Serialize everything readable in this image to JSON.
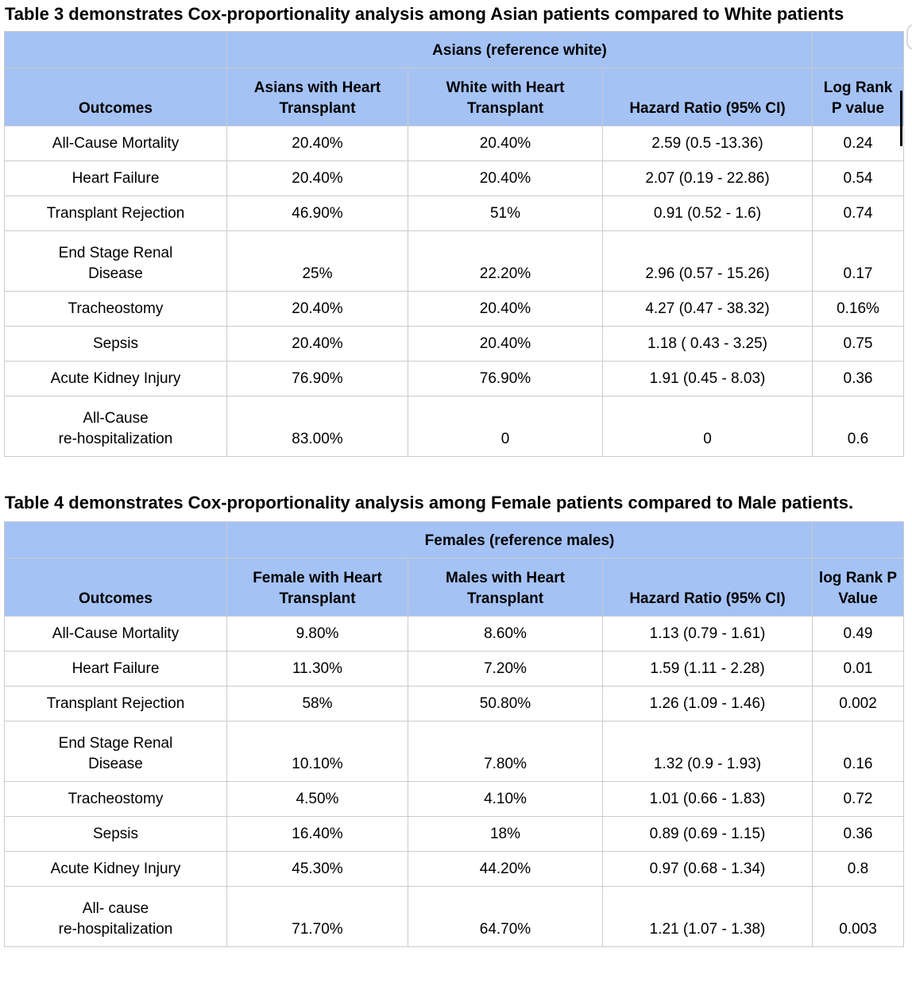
{
  "colors": {
    "header_bg": "#a4c2f4",
    "border": "#cbcbcb",
    "text": "#000000",
    "caret": "#000000"
  },
  "tables": [
    {
      "title": "Table 3 demonstrates Cox-proportionality analysis among Asian patients compared to White patients",
      "group_header": "Asians (reference white)",
      "col_headers": [
        "Outcomes",
        "Asians with Heart Transplant",
        "White with Heart Transplant",
        "Hazard Ratio (95% CI)",
        "Log Rank P value"
      ],
      "rows": [
        [
          "All-Cause Mortality",
          "20.40%",
          "20.40%",
          "2.59 (0.5 -13.36)",
          "0.24"
        ],
        [
          "Heart Failure",
          "20.40%",
          "20.40%",
          "2.07 (0.19 - 22.86)",
          "0.54"
        ],
        [
          "Transplant Rejection",
          "46.90%",
          "51%",
          "0.91 (0.52 - 1.6)",
          "0.74"
        ],
        [
          "End Stage Renal\nDisease",
          "25%",
          "22.20%",
          "2.96 (0.57 - 15.26)",
          "0.17"
        ],
        [
          "Tracheostomy",
          "20.40%",
          "20.40%",
          "4.27 (0.47 - 38.32)",
          "0.16%"
        ],
        [
          "Sepsis",
          "20.40%",
          "20.40%",
          "1.18 ( 0.43 - 3.25)",
          "0.75"
        ],
        [
          "Acute Kidney Injury",
          "76.90%",
          "76.90%",
          "1.91 (0.45 - 8.03)",
          "0.36"
        ],
        [
          "All-Cause\nre-hospitalization",
          "83.00%",
          "0",
          "0",
          "0.6"
        ]
      ]
    },
    {
      "title": "Table 4 demonstrates Cox-proportionality analysis among Female patients compared to Male patients.",
      "group_header": "Females (reference males)",
      "col_headers": [
        "Outcomes",
        "Female with Heart Transplant",
        "Males with Heart Transplant",
        "Hazard Ratio (95% CI)",
        "log Rank P Value"
      ],
      "rows": [
        [
          "All-Cause Mortality",
          "9.80%",
          "8.60%",
          "1.13 (0.79 - 1.61)",
          "0.49"
        ],
        [
          "Heart Failure",
          "11.30%",
          "7.20%",
          "1.59 (1.11 - 2.28)",
          "0.01"
        ],
        [
          "Transplant Rejection",
          "58%",
          "50.80%",
          "1.26 (1.09 - 1.46)",
          "0.002"
        ],
        [
          "End Stage Renal\nDisease",
          "10.10%",
          "7.80%",
          "1.32 (0.9 - 1.93)",
          "0.16"
        ],
        [
          "Tracheostomy",
          "4.50%",
          "4.10%",
          "1.01 (0.66 - 1.83)",
          "0.72"
        ],
        [
          "Sepsis",
          "16.40%",
          "18%",
          "0.89 (0.69 - 1.15)",
          "0.36"
        ],
        [
          "Acute Kidney Injury",
          "45.30%",
          "44.20%",
          "0.97 (0.68 - 1.34)",
          "0.8"
        ],
        [
          "All- cause\nre-hospitalization",
          "71.70%",
          "64.70%",
          "1.21 (1.07 - 1.38)",
          "0.003"
        ]
      ]
    }
  ]
}
